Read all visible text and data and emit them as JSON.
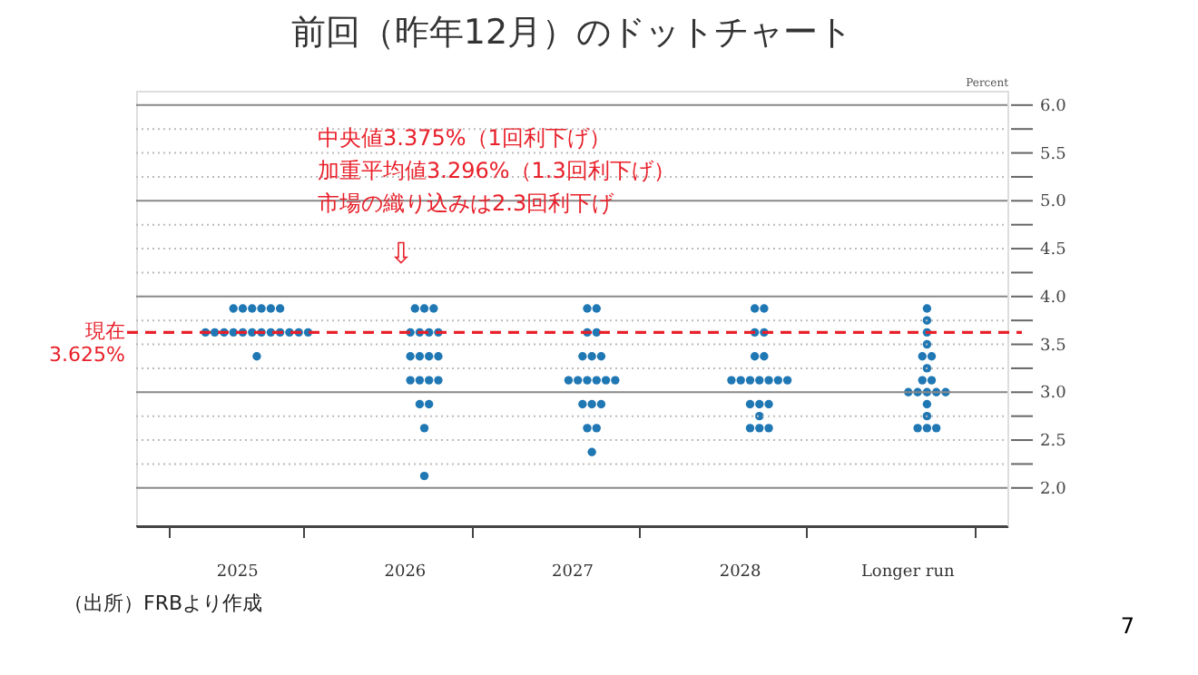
{
  "chart_data": {
    "type": "scatter",
    "title": "前回（昨年12月）のドットチャート",
    "ylabel": "Percent",
    "categories": [
      "2025",
      "2026",
      "2027",
      "2028",
      "Longer run"
    ],
    "marker": "circle",
    "series": [
      {
        "color": "#1f77b4",
        "values": [
          3.875,
          3.875,
          3.875,
          3.875,
          3.875
        ]
      },
      {
        "color": "#1f77b4",
        "values": [
          3.875,
          3.875,
          3.875,
          3.875,
          3.75
        ]
      },
      {
        "color": "#1f77b4",
        "values": [
          3.875,
          3.875,
          3.625,
          3.625,
          3.625
        ]
      },
      {
        "color": "#1f77b4",
        "values": [
          3.875,
          3.625,
          3.625,
          3.625,
          3.5
        ]
      },
      {
        "color": "#1f77b4",
        "values": [
          3.875,
          3.625,
          3.375,
          3.375,
          3.375
        ]
      },
      {
        "color": "#1f77b4",
        "values": [
          3.875,
          3.625,
          3.375,
          3.375,
          3.375
        ]
      },
      {
        "color": "#1f77b4",
        "values": [
          3.625,
          3.625,
          3.375,
          3.125,
          3.25
        ]
      },
      {
        "color": "#1f77b4",
        "values": [
          3.625,
          3.375,
          3.125,
          3.125,
          3.125
        ]
      },
      {
        "color": "#1f77b4",
        "values": [
          3.625,
          3.375,
          3.125,
          3.125,
          3.125
        ]
      },
      {
        "color": "#1f77b4",
        "values": [
          3.625,
          3.375,
          3.125,
          3.125,
          3.0
        ]
      },
      {
        "color": "#1f77b4",
        "values": [
          3.625,
          3.375,
          3.125,
          3.125,
          3.0
        ]
      },
      {
        "color": "#1f77b4",
        "values": [
          3.625,
          3.125,
          3.125,
          3.125,
          3.0
        ]
      },
      {
        "color": "#1f77b4",
        "values": [
          3.625,
          3.125,
          3.125,
          3.125,
          3.0
        ]
      },
      {
        "color": "#1f77b4",
        "values": [
          3.625,
          3.125,
          2.875,
          2.875,
          3.0
        ]
      },
      {
        "color": "#1f77b4",
        "values": [
          3.625,
          3.125,
          2.875,
          2.875,
          2.875
        ]
      },
      {
        "color": "#1f77b4",
        "values": [
          3.625,
          2.875,
          2.875,
          2.875,
          2.75
        ]
      },
      {
        "color": "#1f77b4",
        "values": [
          3.625,
          2.875,
          2.625,
          2.75,
          2.625
        ]
      },
      {
        "color": "#1f77b4",
        "values": [
          3.625,
          2.625,
          2.625,
          2.625,
          2.625
        ]
      },
      {
        "color": "#1f77b4",
        "values": [
          3.375,
          2.125,
          2.375,
          2.625,
          2.625
        ]
      },
      {
        "color": "#1f77b4",
        "values": [
          null,
          null,
          null,
          2.625,
          null
        ]
      }
    ],
    "ylim": [
      1.6,
      6.15
    ],
    "yticks": [
      {
        "value": 2.0,
        "label": "2.0"
      },
      {
        "value": 2.25,
        "label": null
      },
      2.5,
      {
        "value": 2.75,
        "label": null
      },
      {
        "value": 3.0,
        "label": "3.0"
      },
      {
        "value": 3.25,
        "label": null
      },
      3.5,
      {
        "value": 3.75,
        "label": null
      },
      {
        "value": 4.0,
        "label": "4.0"
      },
      {
        "value": 4.25,
        "label": null
      },
      4.5,
      {
        "value": 4.75,
        "label": null
      },
      {
        "value": 5.0,
        "label": "5.0"
      },
      {
        "value": 5.25,
        "label": null
      },
      5.5,
      {
        "value": 5.75,
        "label": null
      },
      {
        "value": 6.0,
        "label": "6.0"
      }
    ],
    "grid": "y",
    "ref_lines": [
      {
        "axis": "y",
        "value": 3.625,
        "label": "現在\n3.625%",
        "color": "#e8202a",
        "line_style": "dashed"
      }
    ],
    "annotations": [
      "中央値3.375%（1回利下げ）",
      "加重平均値3.296%（1.3回利下げ）",
      "市場の織り込みは2.3回利下げ",
      "⇩",
      "（出所）FRBより作成",
      "7"
    ]
  }
}
